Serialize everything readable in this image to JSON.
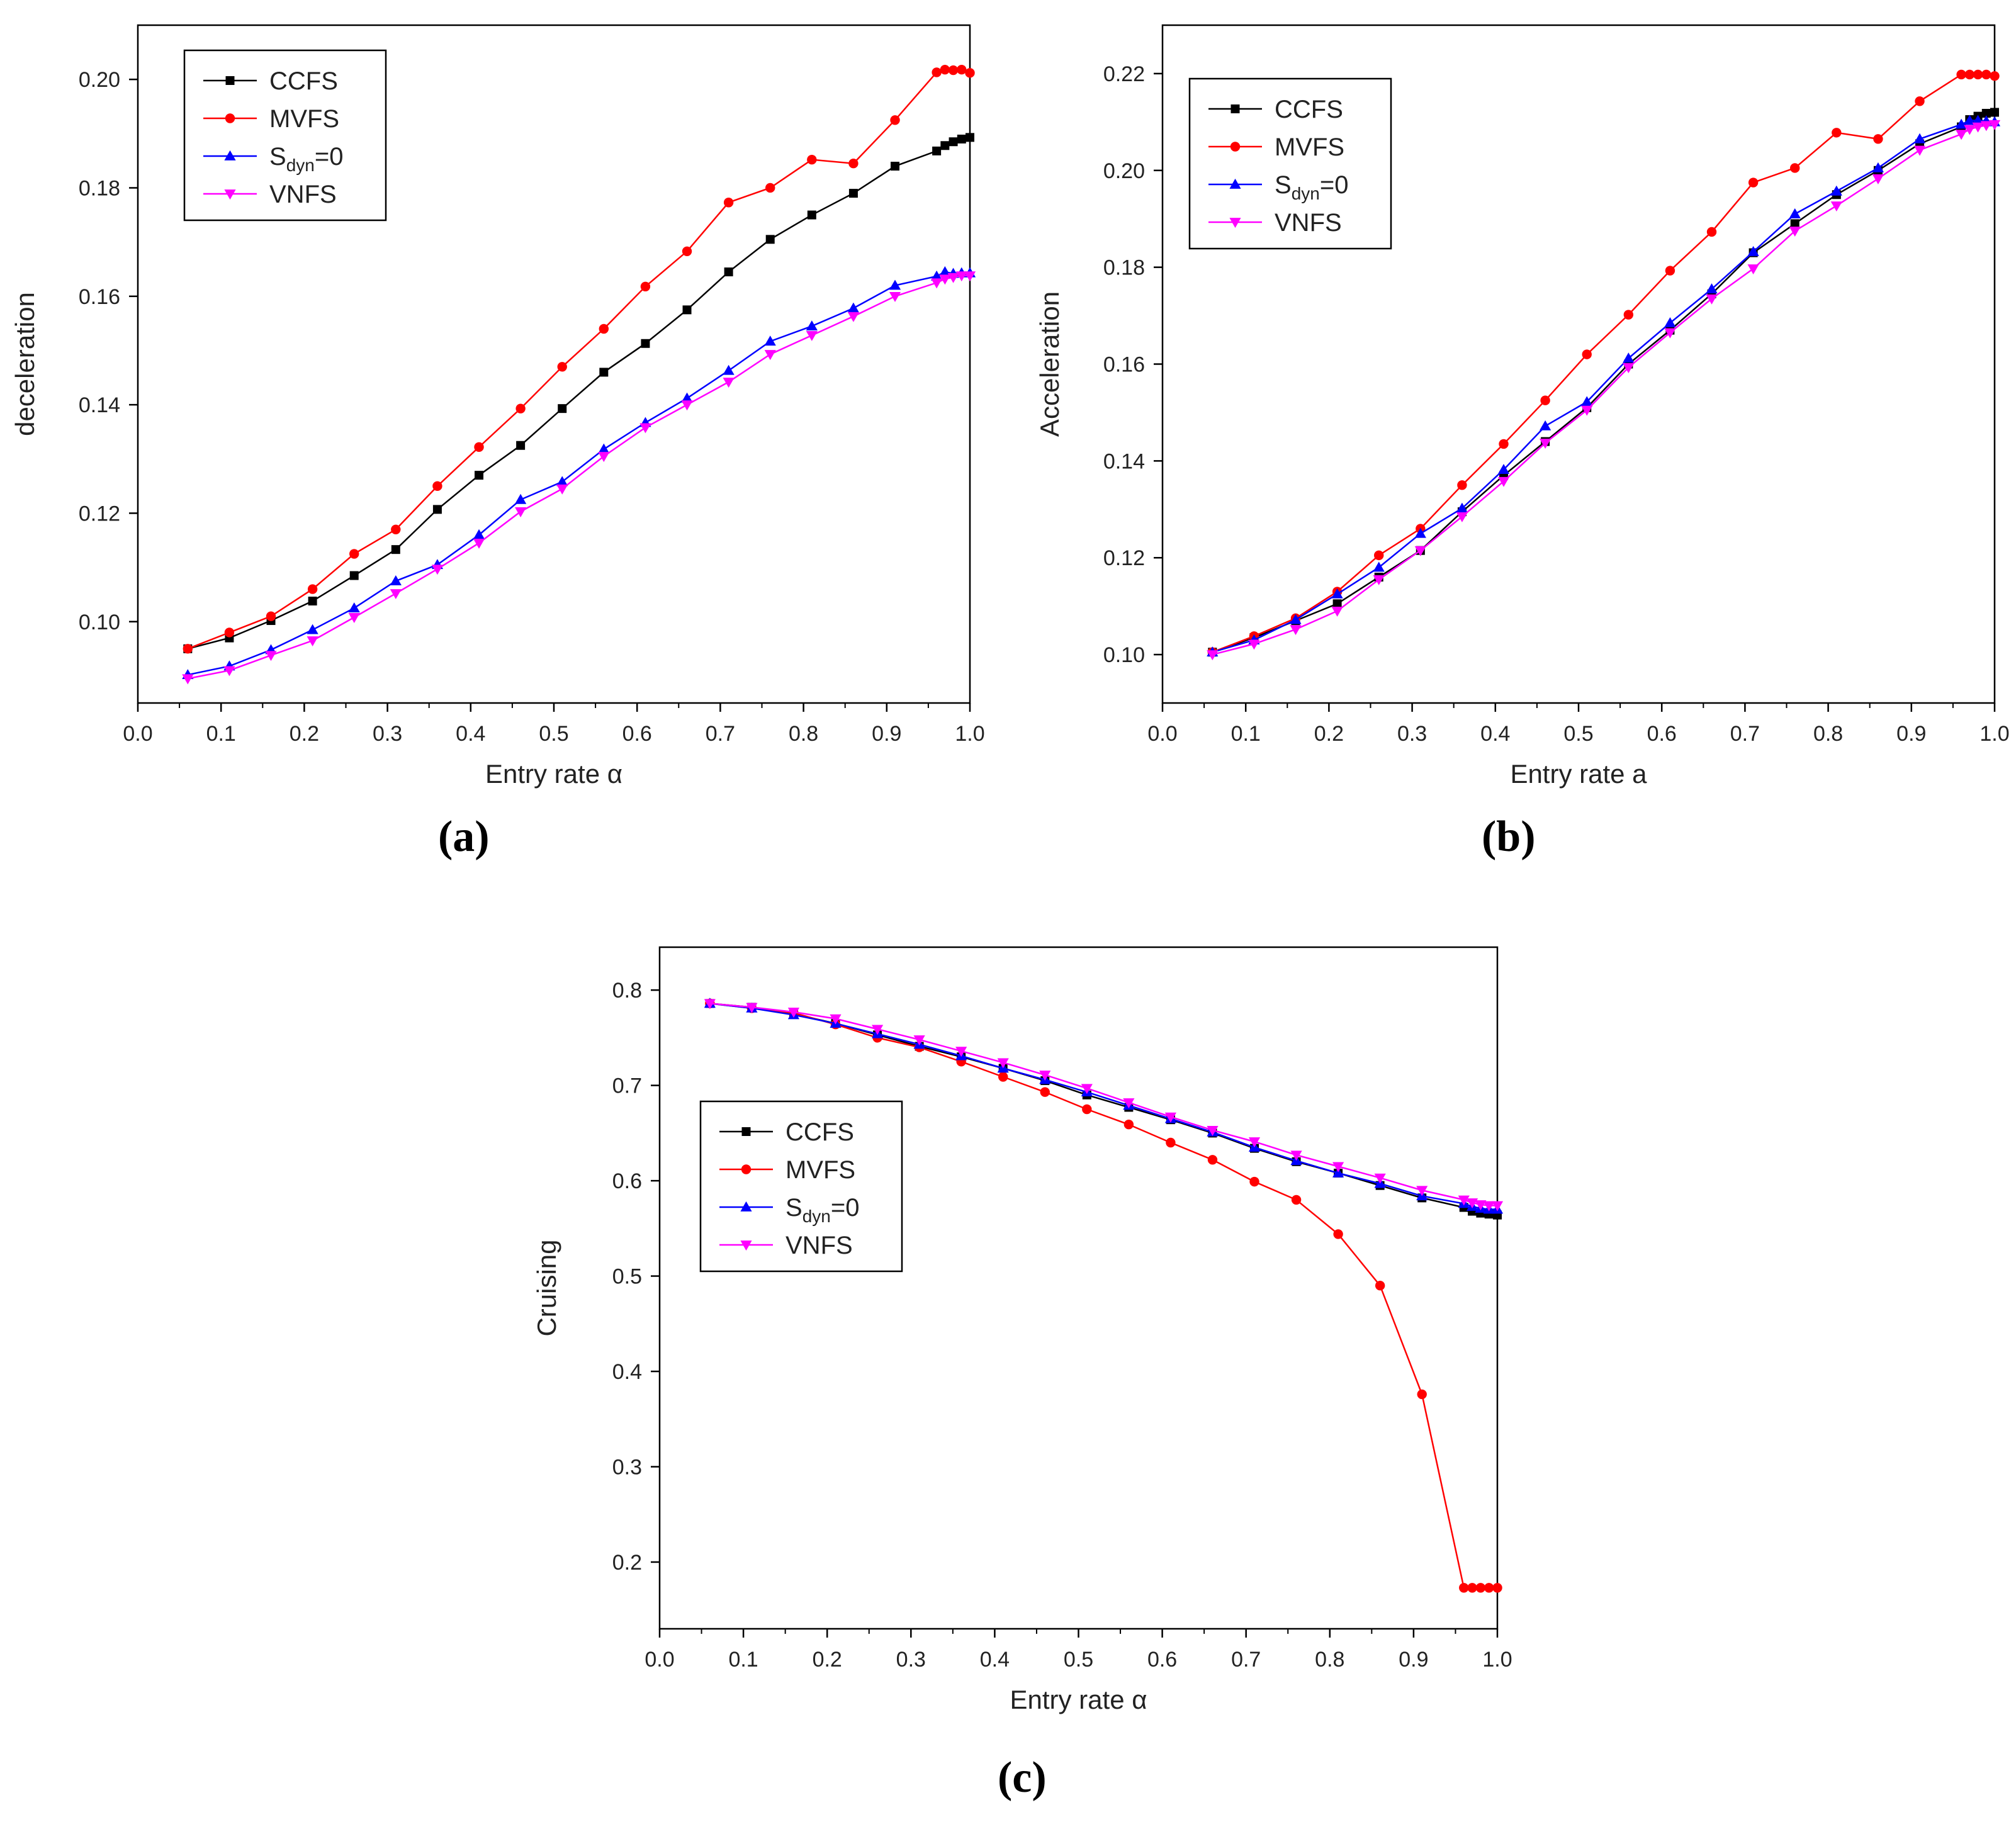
{
  "figure": {
    "panel_labels": [
      "(a)",
      "(b)",
      "(c)"
    ]
  },
  "chart_data": [
    {
      "id": "a",
      "type": "line",
      "title": "",
      "xlabel": "Entry rate α",
      "ylabel": "deceleration",
      "xlim": [
        0.0,
        1.0
      ],
      "ylim": [
        0.085,
        0.21
      ],
      "xticks": [
        0.0,
        0.1,
        0.2,
        0.3,
        0.4,
        0.5,
        0.6,
        0.7,
        0.8,
        0.9,
        1.0
      ],
      "yticks": [
        0.1,
        0.12,
        0.14,
        0.16,
        0.18,
        0.2
      ],
      "xtick_labels": [
        "0.0",
        "0.1",
        "0.2",
        "0.3",
        "0.4",
        "0.5",
        "0.6",
        "0.7",
        "0.8",
        "0.9",
        "1.0"
      ],
      "ytick_labels": [
        "0.10",
        "0.12",
        "0.14",
        "0.16",
        "0.18",
        "0.20"
      ],
      "legend_position": "top-left",
      "x": [
        0.06,
        0.11,
        0.16,
        0.21,
        0.26,
        0.31,
        0.36,
        0.41,
        0.46,
        0.51,
        0.56,
        0.61,
        0.66,
        0.71,
        0.76,
        0.81,
        0.86,
        0.91,
        0.96,
        0.97,
        0.98,
        0.99,
        1.0
      ],
      "series": [
        {
          "name": "CCFS",
          "color": "#000000",
          "marker": "square",
          "values": [
            0.095,
            0.097,
            0.1002,
            0.1038,
            0.1085,
            0.1133,
            0.1207,
            0.127,
            0.1325,
            0.1393,
            0.146,
            0.1513,
            0.1575,
            0.1645,
            0.1705,
            0.175,
            0.179,
            0.184,
            0.1868,
            0.1878,
            0.1885,
            0.189,
            0.1893
          ]
        },
        {
          "name": "MVFS",
          "color": "#ff0000",
          "marker": "circle",
          "values": [
            0.095,
            0.098,
            0.101,
            0.106,
            0.1125,
            0.117,
            0.125,
            0.1322,
            0.1393,
            0.147,
            0.154,
            0.1618,
            0.1683,
            0.1773,
            0.18,
            0.1852,
            0.1845,
            0.1925,
            0.2013,
            0.2018,
            0.2017,
            0.2018,
            0.2012
          ]
        },
        {
          "name": "S_dyn=0",
          "color": "#0000ff",
          "marker": "triangle-up",
          "values": [
            0.0902,
            0.0918,
            0.0948,
            0.0985,
            0.1025,
            0.1075,
            0.1105,
            0.116,
            0.1225,
            0.1258,
            0.1318,
            0.1367,
            0.1412,
            0.1463,
            0.1517,
            0.1545,
            0.1578,
            0.162,
            0.1637,
            0.1645,
            0.1642,
            0.1643,
            0.1643
          ]
        },
        {
          "name": "VNFS",
          "color": "#ff00ff",
          "marker": "triangle-down",
          "values": [
            0.0895,
            0.091,
            0.0938,
            0.0965,
            0.1008,
            0.1052,
            0.1097,
            0.1145,
            0.1203,
            0.1245,
            0.1305,
            0.1358,
            0.14,
            0.1442,
            0.1493,
            0.1528,
            0.1563,
            0.16,
            0.1625,
            0.1632,
            0.1635,
            0.1638,
            0.1638
          ]
        }
      ],
      "legend_labels": [
        {
          "text": "CCFS"
        },
        {
          "text": "MVFS"
        },
        {
          "text": "S",
          "sub": "dyn",
          "suffix": "=0"
        },
        {
          "text": "VNFS"
        }
      ]
    },
    {
      "id": "b",
      "type": "line",
      "title": "",
      "xlabel": "Entry rate a",
      "ylabel": "Acceleration",
      "xlim": [
        0.0,
        1.0
      ],
      "ylim": [
        0.09,
        0.23
      ],
      "xticks": [
        0.0,
        0.1,
        0.2,
        0.3,
        0.4,
        0.5,
        0.6,
        0.7,
        0.8,
        0.9,
        1.0
      ],
      "yticks": [
        0.1,
        0.12,
        0.14,
        0.16,
        0.18,
        0.2,
        0.22
      ],
      "xtick_labels": [
        "0.0",
        "0.1",
        "0.2",
        "0.3",
        "0.4",
        "0.5",
        "0.6",
        "0.7",
        "0.8",
        "0.9",
        "1.0"
      ],
      "ytick_labels": [
        "0.10",
        "0.12",
        "0.14",
        "0.16",
        "0.18",
        "0.20",
        "0.22"
      ],
      "legend_position": "top-left",
      "x": [
        0.06,
        0.11,
        0.16,
        0.21,
        0.26,
        0.31,
        0.36,
        0.41,
        0.46,
        0.51,
        0.56,
        0.61,
        0.66,
        0.71,
        0.76,
        0.81,
        0.86,
        0.91,
        0.96,
        0.97,
        0.98,
        0.99,
        1.0
      ],
      "series": [
        {
          "name": "CCFS",
          "color": "#000000",
          "marker": "square",
          "values": [
            0.1005,
            0.1035,
            0.107,
            0.1105,
            0.116,
            0.1215,
            0.1295,
            0.137,
            0.144,
            0.151,
            0.16,
            0.167,
            0.1745,
            0.183,
            0.189,
            0.195,
            0.2,
            0.2055,
            0.209,
            0.2105,
            0.2112,
            0.2118,
            0.212
          ]
        },
        {
          "name": "MVFS",
          "color": "#ff0000",
          "marker": "circle",
          "values": [
            0.1005,
            0.1038,
            0.1075,
            0.113,
            0.1205,
            0.126,
            0.135,
            0.1435,
            0.1525,
            0.162,
            0.1702,
            0.1793,
            0.1873,
            0.1975,
            0.2005,
            0.2078,
            0.2065,
            0.2143,
            0.2198,
            0.2198,
            0.2198,
            0.2198,
            0.2195
          ]
        },
        {
          "name": "S_dyn=0",
          "color": "#0000ff",
          "marker": "triangle-up",
          "values": [
            0.1005,
            0.103,
            0.1072,
            0.1125,
            0.118,
            0.125,
            0.1302,
            0.1382,
            0.1472,
            0.1522,
            0.1612,
            0.1685,
            0.1755,
            0.1832,
            0.191,
            0.1957,
            0.2005,
            0.2065,
            0.2095,
            0.2103,
            0.2103,
            0.2102,
            0.21
          ]
        },
        {
          "name": "VNFS",
          "color": "#ff00ff",
          "marker": "triangle-down",
          "values": [
            0.1,
            0.1022,
            0.1052,
            0.109,
            0.1155,
            0.1215,
            0.1285,
            0.1358,
            0.1437,
            0.1505,
            0.1593,
            0.1665,
            0.1735,
            0.1797,
            0.1875,
            0.1927,
            0.1983,
            0.2042,
            0.2075,
            0.2085,
            0.209,
            0.2093,
            0.2095
          ]
        }
      ],
      "legend_labels": [
        {
          "text": "CCFS"
        },
        {
          "text": "MVFS"
        },
        {
          "text": "S",
          "sub": "dyn",
          "suffix": "=0"
        },
        {
          "text": "VNFS"
        }
      ]
    },
    {
      "id": "c",
      "type": "line",
      "title": "",
      "xlabel": "Entry rate α",
      "ylabel": "Cruising",
      "xlim": [
        0.0,
        1.0
      ],
      "ylim": [
        0.13,
        0.845
      ],
      "xticks": [
        0.0,
        0.1,
        0.2,
        0.3,
        0.4,
        0.5,
        0.6,
        0.7,
        0.8,
        0.9,
        1.0
      ],
      "yticks": [
        0.2,
        0.3,
        0.4,
        0.5,
        0.6,
        0.7,
        0.8
      ],
      "xtick_labels": [
        "0.0",
        "0.1",
        "0.2",
        "0.3",
        "0.4",
        "0.5",
        "0.6",
        "0.7",
        "0.8",
        "0.9",
        "1.0"
      ],
      "ytick_labels": [
        "0.2",
        "0.3",
        "0.4",
        "0.5",
        "0.6",
        "0.7",
        "0.8"
      ],
      "legend_position": "center-left",
      "x": [
        0.06,
        0.11,
        0.16,
        0.21,
        0.26,
        0.31,
        0.36,
        0.41,
        0.46,
        0.51,
        0.56,
        0.61,
        0.66,
        0.71,
        0.76,
        0.81,
        0.86,
        0.91,
        0.96,
        0.97,
        0.98,
        0.99,
        1.0
      ],
      "series": [
        {
          "name": "CCFS",
          "color": "#000000",
          "marker": "square",
          "values": [
            0.786,
            0.782,
            0.775,
            0.765,
            0.753,
            0.741,
            0.73,
            0.718,
            0.705,
            0.69,
            0.677,
            0.664,
            0.65,
            0.634,
            0.62,
            0.608,
            0.595,
            0.582,
            0.572,
            0.568,
            0.566,
            0.565,
            0.564
          ]
        },
        {
          "name": "MVFS",
          "color": "#ff0000",
          "marker": "circle",
          "values": [
            0.786,
            0.781,
            0.776,
            0.764,
            0.75,
            0.74,
            0.725,
            0.709,
            0.693,
            0.675,
            0.659,
            0.64,
            0.622,
            0.599,
            0.58,
            0.544,
            0.49,
            0.376,
            0.173,
            0.173,
            0.173,
            0.173,
            0.173
          ]
        },
        {
          "name": "S_dyn=0",
          "color": "#0000ff",
          "marker": "triangle-up",
          "values": [
            0.786,
            0.781,
            0.774,
            0.765,
            0.754,
            0.743,
            0.731,
            0.718,
            0.706,
            0.693,
            0.679,
            0.665,
            0.651,
            0.635,
            0.621,
            0.608,
            0.597,
            0.584,
            0.576,
            0.573,
            0.571,
            0.57,
            0.57
          ]
        },
        {
          "name": "VNFS",
          "color": "#ff00ff",
          "marker": "triangle-down",
          "values": [
            0.786,
            0.782,
            0.777,
            0.77,
            0.759,
            0.748,
            0.736,
            0.724,
            0.711,
            0.697,
            0.682,
            0.667,
            0.653,
            0.641,
            0.627,
            0.615,
            0.603,
            0.59,
            0.58,
            0.577,
            0.575,
            0.574,
            0.574
          ]
        }
      ],
      "legend_labels": [
        {
          "text": "CCFS"
        },
        {
          "text": "MVFS"
        },
        {
          "text": "S",
          "sub": "dyn",
          "suffix": "=0"
        },
        {
          "text": "VNFS"
        }
      ]
    }
  ]
}
